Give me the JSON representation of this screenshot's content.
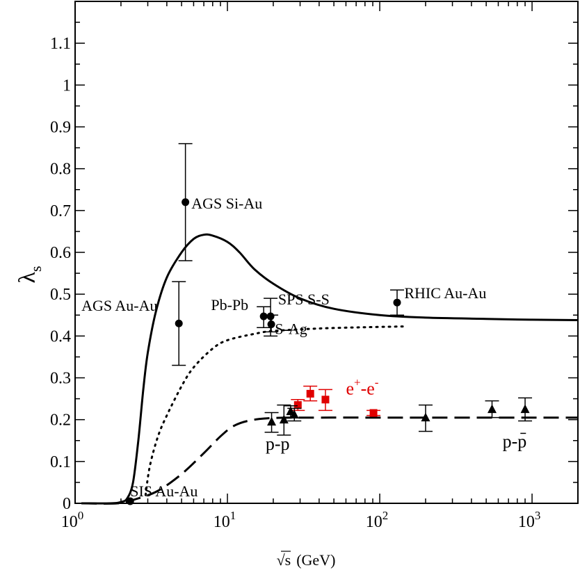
{
  "chart_data": {
    "type": "scatter",
    "xscale": "log",
    "xlim": [
      1,
      2000
    ],
    "ylim": [
      0,
      1.2
    ],
    "xlabel_sqrt": "√s",
    "xlabel_unit": "(GeV)",
    "ylabel_main": "λ",
    "ylabel_sub": "s",
    "x_ticks": [
      {
        "value": 1,
        "base": "10",
        "exp": "0"
      },
      {
        "value": 10,
        "base": "10",
        "exp": "1"
      },
      {
        "value": 100,
        "base": "10",
        "exp": "2"
      },
      {
        "value": 1000,
        "base": "10",
        "exp": "3"
      }
    ],
    "y_ticks": [
      {
        "value": 0,
        "label": "0"
      },
      {
        "value": 0.1,
        "label": "0.1"
      },
      {
        "value": 0.2,
        "label": "0.2"
      },
      {
        "value": 0.3,
        "label": "0.3"
      },
      {
        "value": 0.4,
        "label": "0.4"
      },
      {
        "value": 0.5,
        "label": "0.5"
      },
      {
        "value": 0.6,
        "label": "0.6"
      },
      {
        "value": 0.7,
        "label": "0.7"
      },
      {
        "value": 0.8,
        "label": "0.8"
      },
      {
        "value": 0.9,
        "label": "0.9"
      },
      {
        "value": 1.0,
        "label": "1"
      },
      {
        "value": 1.1,
        "label": "1.1"
      }
    ],
    "curves": [
      {
        "name": "heavy-ion-fit",
        "style": "solid",
        "points": [
          [
            1.1,
            0
          ],
          [
            1.7,
            0
          ],
          [
            2.0,
            0.003
          ],
          [
            2.2,
            0.012
          ],
          [
            2.4,
            0.05
          ],
          [
            2.6,
            0.15
          ],
          [
            2.8,
            0.27
          ],
          [
            3.0,
            0.36
          ],
          [
            3.4,
            0.46
          ],
          [
            4.0,
            0.54
          ],
          [
            5.0,
            0.6
          ],
          [
            6.0,
            0.632
          ],
          [
            7.0,
            0.642
          ],
          [
            8.0,
            0.64
          ],
          [
            10,
            0.625
          ],
          [
            12,
            0.6
          ],
          [
            15,
            0.56
          ],
          [
            20,
            0.525
          ],
          [
            30,
            0.49
          ],
          [
            50,
            0.465
          ],
          [
            100,
            0.45
          ],
          [
            200,
            0.444
          ],
          [
            500,
            0.441
          ],
          [
            1000,
            0.439
          ],
          [
            2000,
            0.438
          ]
        ]
      },
      {
        "name": "dotted-fit",
        "style": "dotted",
        "points": [
          [
            2.9,
            0.02
          ],
          [
            3.1,
            0.09
          ],
          [
            3.5,
            0.16
          ],
          [
            4,
            0.21
          ],
          [
            5,
            0.28
          ],
          [
            6,
            0.325
          ],
          [
            8,
            0.37
          ],
          [
            10,
            0.39
          ],
          [
            15,
            0.405
          ],
          [
            20,
            0.412
          ],
          [
            40,
            0.418
          ],
          [
            80,
            0.421
          ],
          [
            150,
            0.423
          ]
        ]
      },
      {
        "name": "pp-fit",
        "style": "dashed",
        "points": [
          [
            1.1,
            0
          ],
          [
            1.9,
            0
          ],
          [
            2.5,
            0.01
          ],
          [
            3.5,
            0.03
          ],
          [
            5,
            0.07
          ],
          [
            7,
            0.12
          ],
          [
            9,
            0.16
          ],
          [
            11,
            0.185
          ],
          [
            14,
            0.198
          ],
          [
            20,
            0.204
          ],
          [
            40,
            0.205
          ],
          [
            100,
            0.205
          ],
          [
            1000,
            0.205
          ],
          [
            2000,
            0.205
          ]
        ]
      }
    ],
    "series": [
      {
        "name": "heavy-ion",
        "marker": "circle",
        "color": "#000000",
        "points": [
          {
            "x": 2.3,
            "y": 0.005,
            "lo": 0.005,
            "hi": 0.005
          },
          {
            "x": 4.8,
            "y": 0.43,
            "lo": 0.33,
            "hi": 0.53
          },
          {
            "x": 5.3,
            "y": 0.72,
            "lo": 0.58,
            "hi": 0.86
          },
          {
            "x": 17.3,
            "y": 0.447,
            "lo": 0.42,
            "hi": 0.47
          },
          {
            "x": 19.2,
            "y": 0.447,
            "lo": 0.4,
            "hi": 0.49
          },
          {
            "x": 19.4,
            "y": 0.428,
            "lo": 0.41,
            "hi": 0.45
          },
          {
            "x": 130,
            "y": 0.48,
            "lo": 0.45,
            "hi": 0.51
          }
        ]
      },
      {
        "name": "e+e-",
        "marker": "square",
        "color": "#e00000",
        "points": [
          {
            "x": 29,
            "y": 0.235,
            "lo": 0.222,
            "hi": 0.248
          },
          {
            "x": 35,
            "y": 0.262,
            "lo": 0.245,
            "hi": 0.28
          },
          {
            "x": 44,
            "y": 0.248,
            "lo": 0.222,
            "hi": 0.272
          },
          {
            "x": 91,
            "y": 0.216,
            "lo": 0.21,
            "hi": 0.222
          }
        ]
      },
      {
        "name": "p-p",
        "marker": "triangle",
        "color": "#000000",
        "points": [
          {
            "x": 19.5,
            "y": 0.195,
            "lo": 0.17,
            "hi": 0.217
          },
          {
            "x": 23.5,
            "y": 0.2,
            "lo": 0.163,
            "hi": 0.235
          },
          {
            "x": 26,
            "y": 0.22,
            "lo": 0.205,
            "hi": 0.233
          },
          {
            "x": 27.5,
            "y": 0.212,
            "lo": 0.197,
            "hi": 0.227
          },
          {
            "x": 200,
            "y": 0.205,
            "lo": 0.172,
            "hi": 0.235
          },
          {
            "x": 546,
            "y": 0.225,
            "lo": 0.205,
            "hi": 0.245
          },
          {
            "x": 900,
            "y": 0.225,
            "lo": 0.197,
            "hi": 0.252
          }
        ]
      }
    ],
    "annotations": [
      {
        "key": "ags_si_au",
        "text": "AGS Si-Au",
        "x": 5.8,
        "y": 0.705
      },
      {
        "key": "ags_au_au",
        "text": "AGS Au-Au",
        "x": 1.1,
        "y": 0.46
      },
      {
        "key": "pb_pb",
        "text": "Pb-Pb",
        "x": 7.8,
        "y": 0.462
      },
      {
        "key": "sps_s_s",
        "text": "SPS S-S",
        "x": 21.5,
        "y": 0.475
      },
      {
        "key": "s_ag",
        "text": "S-Ag",
        "x": 20.5,
        "y": 0.405
      },
      {
        "key": "rhic_au_au",
        "text": "RHIC Au-Au",
        "x": 145,
        "y": 0.49
      },
      {
        "key": "sis_au_au",
        "text": "SIS Au-Au",
        "x": 2.3,
        "y": 0.017
      },
      {
        "key": "p_p",
        "text": "p-p",
        "x": 17.8,
        "y": 0.128
      },
      {
        "key": "p_pbar",
        "text": "p-p",
        "x": 640,
        "y": 0.134,
        "overline_second": true
      }
    ],
    "ee_label": {
      "e1": "e",
      "s1": "+",
      "dash": "-e",
      "s2": "-",
      "x": 60,
      "y": 0.26
    }
  }
}
